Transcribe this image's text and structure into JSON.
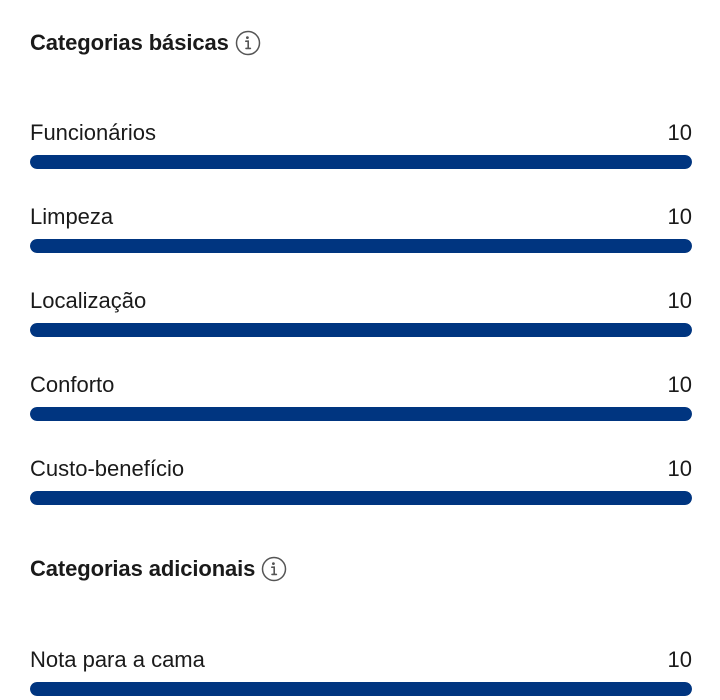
{
  "sections": [
    {
      "title": "Categorias básicas",
      "info_icon": "info-icon",
      "items": [
        {
          "label": "Funcionários",
          "score": "10",
          "fill_fraction": 1.0
        },
        {
          "label": "Limpeza",
          "score": "10",
          "fill_fraction": 1.0
        },
        {
          "label": "Localização",
          "score": "10",
          "fill_fraction": 1.0
        },
        {
          "label": "Conforto",
          "score": "10",
          "fill_fraction": 1.0
        },
        {
          "label": "Custo-benefício",
          "score": "10",
          "fill_fraction": 1.0
        }
      ]
    },
    {
      "title": "Categorias adicionais",
      "info_icon": "info-icon",
      "items": [
        {
          "label": "Nota para a cama",
          "score": "10",
          "fill_fraction": 1.0
        }
      ]
    }
  ],
  "colors": {
    "bar_fill": "#003580",
    "bar_track": "#e3e3e3",
    "text": "#1a1a1a"
  }
}
